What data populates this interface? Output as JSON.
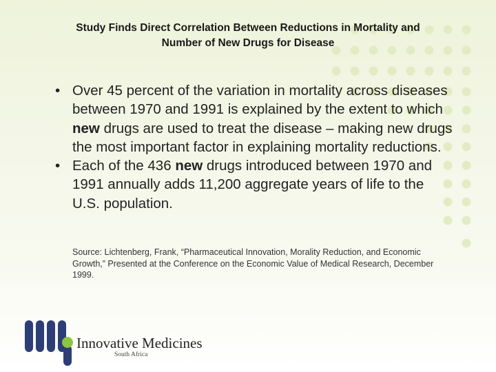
{
  "slide": {
    "title_line1": "Study Finds Direct Correlation Between Reductions in Mortality and",
    "title_line2": "Number of New Drugs for Disease",
    "bullet_symbol": "•",
    "bullet1": {
      "part1": "Over 45 percent of the variation in mortality across diseases between 1970 and 1991 is explained by the extent to which ",
      "bold": "new",
      "part2": " drugs are used to treat the disease – making new drugs the most important factor in explaining mortality reductions."
    },
    "bullet2": {
      "part1": "Each of the 436 ",
      "bold": "new",
      "part2": " drugs introduced between 1970 and 1991 annually adds 11,200 aggregate years of life to the U.S. population."
    },
    "source": "Source: Lichtenberg, Frank, “Pharmaceutical Innovation, Morality Reduction, and Economic Growth,” Presented at the Conference on the Economic Value of Medical Research, December 1999."
  },
  "logo": {
    "name": "Innovative Medicines",
    "subtitle": "South Africa"
  },
  "colors": {
    "dot_color": "#e3ebc4",
    "logo_navy": "#2c3e75",
    "logo_green": "#8cc63f"
  }
}
